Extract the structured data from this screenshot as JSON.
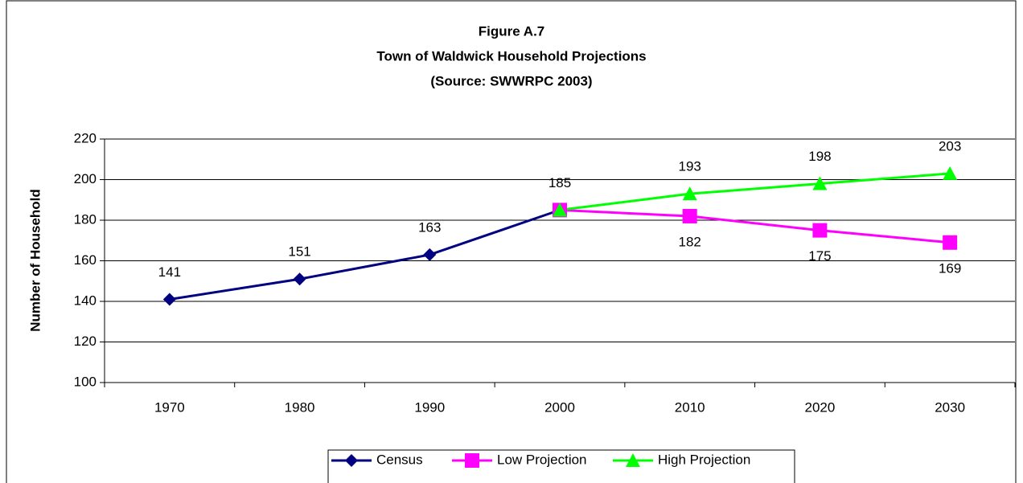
{
  "chart_data": {
    "type": "line",
    "title": [
      "Figure A.7",
      "Town of Waldwick Household Projections",
      "(Source:  SWWRPC 2003)"
    ],
    "y_label": "Number of Household",
    "categories": [
      "1970",
      "1980",
      "1990",
      "2000",
      "2010",
      "2020",
      "2030"
    ],
    "series": [
      {
        "name": "Census",
        "color": "#000080",
        "marker": "diamond",
        "label_position": "above",
        "values": [
          141,
          151,
          163,
          185,
          null,
          null,
          null
        ]
      },
      {
        "name": "Low  Projection",
        "color": "#ff00ff",
        "marker": "square",
        "label_position": "below",
        "values": [
          null,
          null,
          null,
          185,
          182,
          175,
          169
        ]
      },
      {
        "name": "High Projection",
        "color": "#00ff00",
        "marker": "triangle",
        "label_position": "above",
        "values": [
          null,
          null,
          null,
          185,
          193,
          198,
          203
        ]
      }
    ],
    "ylim": [
      100,
      220
    ],
    "yticks": [
      100,
      120,
      140,
      160,
      180,
      200,
      220
    ],
    "grid": true,
    "legend": "bottom"
  }
}
